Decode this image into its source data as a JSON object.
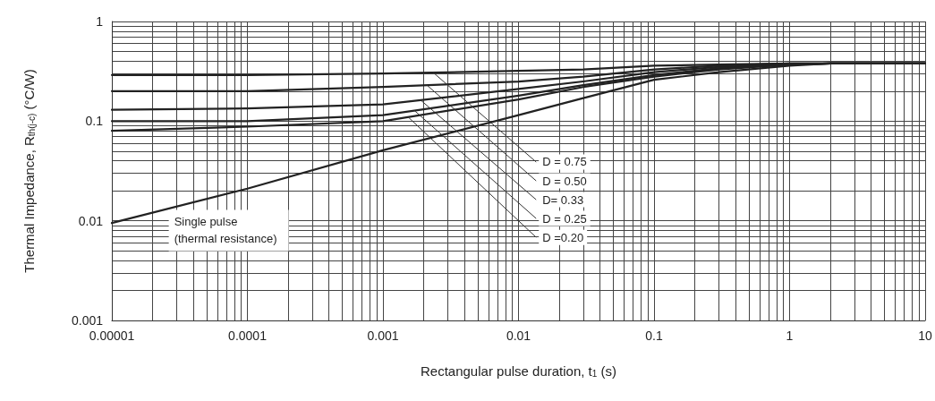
{
  "chart_data": {
    "type": "line",
    "xlabel": "Rectangular pulse duration, t$_{1}$ (s)",
    "ylabel": "Thermal Impedance, R$_{th(j-c)}$ (°C/W)",
    "log": "xy",
    "grid": true,
    "legend": false,
    "marker": "none",
    "line_style": "solid",
    "xlim": [
      1e-05,
      10
    ],
    "xticks": [
      {
        "value": 1e-05,
        "label": "0.00001"
      },
      0.0001,
      0.001,
      0.01,
      0.1,
      1,
      10
    ],
    "ylim": [
      0.001,
      1
    ],
    "yticks": [
      0.001,
      0.01,
      0.1,
      1
    ],
    "x": [
      1e-05,
      0.0001,
      0.001,
      0.01,
      0.03,
      0.1,
      0.3,
      1,
      2,
      10
    ],
    "series": [
      {
        "name": "D = 0.75",
        "color": "#222222",
        "values": [
          0.29,
          0.29,
          0.3,
          0.32,
          0.33,
          0.36,
          0.37,
          0.38,
          0.38,
          0.38
        ]
      },
      {
        "name": "D = 0.50",
        "color": "#222222",
        "values": [
          0.2,
          0.2,
          0.22,
          0.25,
          0.28,
          0.33,
          0.36,
          0.38,
          0.38,
          0.38
        ]
      },
      {
        "name": "D= 0.33",
        "color": "#222222",
        "values": [
          0.13,
          0.134,
          0.147,
          0.21,
          0.25,
          0.31,
          0.35,
          0.37,
          0.38,
          0.38
        ]
      },
      {
        "name": "D = 0.25",
        "color": "#222222",
        "values": [
          0.1,
          0.1,
          0.115,
          0.18,
          0.23,
          0.29,
          0.34,
          0.37,
          0.38,
          0.38
        ]
      },
      {
        "name": "D =0.20",
        "color": "#222222",
        "values": [
          0.08,
          0.088,
          0.1,
          0.165,
          0.22,
          0.28,
          0.33,
          0.37,
          0.38,
          0.38
        ]
      },
      {
        "name": "Single pulse (thermal resistance)",
        "color": "#222222",
        "values": [
          0.0095,
          0.021,
          0.051,
          0.115,
          0.17,
          0.26,
          0.31,
          0.36,
          0.38,
          0.38
        ]
      }
    ]
  }
}
